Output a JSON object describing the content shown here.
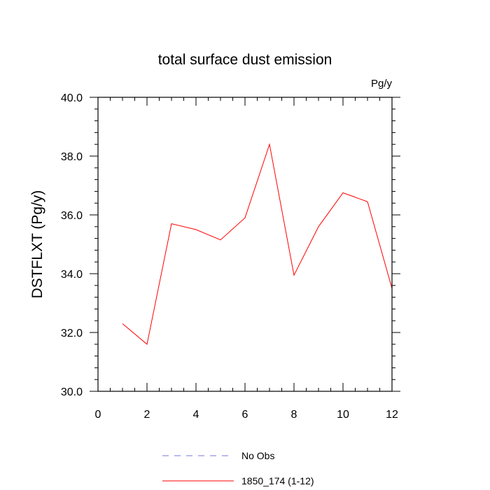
{
  "chart_data": {
    "type": "line",
    "title": "total surface dust emission",
    "units_label": "Pg/y",
    "ylabel": "DSTFLXT  (Pg/y)",
    "xlabel": "",
    "xlim": [
      0,
      12
    ],
    "ylim": [
      30,
      40
    ],
    "x_ticks": [
      0,
      2,
      4,
      6,
      8,
      10,
      12
    ],
    "x_tick_labels": [
      "0",
      "2",
      "4",
      "6",
      "8",
      "10",
      "12"
    ],
    "y_ticks": [
      30,
      32,
      34,
      36,
      38,
      40
    ],
    "y_tick_labels": [
      "30.0",
      "32.0",
      "34.0",
      "36.0",
      "38.0",
      "40.0"
    ],
    "grid": false,
    "legend_position": "bottom",
    "series": [
      {
        "name": "1850_174 (1-12)",
        "color": "#ff0000",
        "style": "solid",
        "x": [
          1,
          2,
          3,
          4,
          5,
          6,
          7,
          8,
          9,
          10,
          11,
          12
        ],
        "y": [
          32.3,
          31.6,
          35.7,
          35.5,
          35.15,
          35.9,
          38.4,
          33.95,
          35.6,
          36.75,
          36.45,
          33.5
        ]
      }
    ],
    "legend": [
      {
        "label": "No Obs",
        "color": "#7777dd",
        "style": "dashed"
      },
      {
        "label": "1850_174 (1-12)",
        "color": "#ff0000",
        "style": "solid"
      }
    ]
  }
}
